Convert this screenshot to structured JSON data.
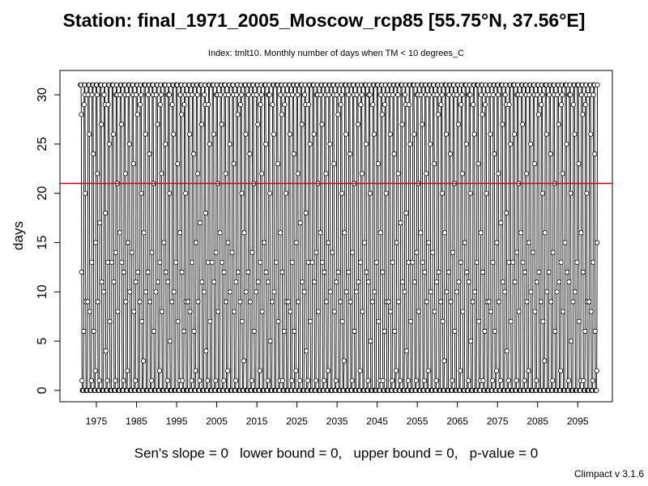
{
  "chart_data": {
    "type": "line",
    "title": "Station: final_1971_2005_Moscow_rcp85 [55.75°N, 37.56°E]",
    "subtitle": "Index: tmlt10. Monthly number of days when TM < 10 degrees_C",
    "xlabel": "",
    "ylabel": "days",
    "x_ticks": [
      "1975",
      "1985",
      "1995",
      "2005",
      "2015",
      "2025",
      "2035",
      "2045",
      "2055",
      "2065",
      "2075",
      "2085",
      "2095"
    ],
    "y_ticks": [
      "0",
      "5",
      "10",
      "15",
      "20",
      "25",
      "30"
    ],
    "xlim": [
      1971,
      2100
    ],
    "ylim": [
      0,
      31
    ],
    "reference_line": {
      "value": 21,
      "color": "#cc0000"
    },
    "series": [
      {
        "values": [
          31,
          31,
          31,
          28,
          12,
          1,
          0,
          0,
          0,
          0,
          6,
          29,
          31,
          31,
          30,
          20,
          9,
          0,
          0,
          0,
          0,
          0,
          9,
          30,
          31,
          31,
          31,
          26,
          8,
          0,
          0,
          0,
          0,
          1,
          13,
          30,
          31,
          31,
          31,
          24,
          6,
          0,
          0,
          0,
          0,
          2,
          15,
          31,
          31,
          31,
          30,
          22,
          9,
          0,
          0,
          0,
          0,
          1,
          17,
          31,
          31,
          31,
          31,
          27,
          11,
          0,
          0,
          0,
          0,
          0,
          10,
          30,
          31,
          31,
          29,
          18,
          4,
          0,
          0,
          0,
          0,
          1,
          13,
          29,
          31,
          31,
          31,
          25,
          7,
          0,
          0,
          0,
          0,
          0,
          13,
          31,
          31,
          31,
          31,
          26,
          11,
          0,
          0,
          0,
          0,
          1,
          14,
          30,
          31,
          31,
          30,
          21,
          8,
          0,
          0,
          0,
          0,
          0,
          16,
          30,
          31,
          31,
          31,
          27,
          13,
          0,
          0,
          0,
          0,
          1,
          12,
          31,
          31,
          31,
          30,
          22,
          9,
          0,
          0,
          0,
          0,
          2,
          15,
          30,
          31,
          31,
          31,
          25,
          10,
          0,
          0,
          0,
          0,
          0,
          14,
          31,
          31,
          31,
          30,
          23,
          8,
          0,
          0,
          0,
          0,
          1,
          11,
          30,
          31,
          31,
          31,
          28,
          12,
          0,
          0,
          0,
          0,
          0,
          9,
          29,
          31,
          31,
          30,
          20,
          7,
          0,
          0,
          0,
          0,
          3,
          16,
          31,
          31,
          31,
          31,
          26,
          10,
          0,
          0,
          0,
          0,
          0,
          12,
          30,
          31,
          31,
          31,
          24,
          9,
          0,
          0,
          0,
          0,
          1,
          14,
          31,
          31,
          31,
          30,
          21,
          6,
          0,
          0,
          0,
          0,
          0,
          10,
          30,
          31,
          31,
          31,
          27,
          11,
          0,
          0,
          0,
          0,
          2,
          13,
          29,
          31,
          31,
          30,
          22,
          8,
          0,
          0,
          0,
          0,
          0,
          15,
          31,
          31,
          31,
          31,
          25,
          12,
          0,
          0,
          0,
          0,
          1,
          11,
          30,
          31,
          31,
          30,
          20,
          5,
          0,
          0,
          0,
          0,
          0,
          9,
          29,
          31,
          31,
          31,
          26,
          10,
          0,
          0,
          0,
          0,
          0,
          13,
          31,
          31,
          31,
          31,
          23,
          7,
          0,
          0,
          0,
          0,
          1,
          16,
          30
        ]
      }
    ],
    "grid": false,
    "legend": "none"
  },
  "header": {
    "title": "Station: final_1971_2005_Moscow_rcp85 [55.75°N, 37.56°E]",
    "subtitle": "Index: tmlt10. Monthly number of days when TM < 10 degrees_C"
  },
  "footer": {
    "stats": "Sen's slope = 0   lower bound = 0,   upper bound = 0,   p-value = 0",
    "credit": "Climpact v 3.1.6"
  },
  "colors": {
    "reference_line": "#cc0000",
    "series_line": "#000000",
    "frame": "#000000"
  }
}
